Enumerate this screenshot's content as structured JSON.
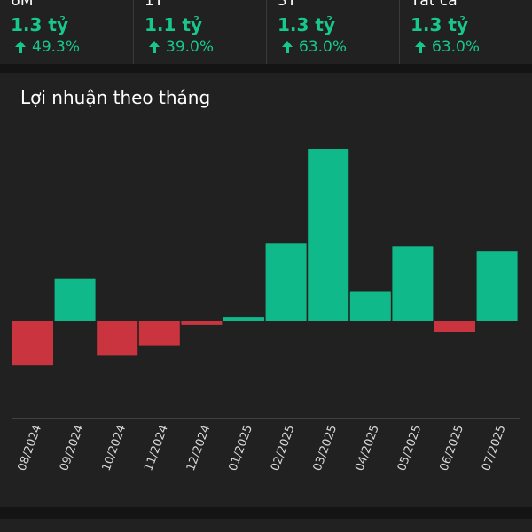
{
  "stats": [
    {
      "period": "6M",
      "value": "1.3 tỷ",
      "change": "49.3%"
    },
    {
      "period": "1Y",
      "value": "1.1 tỷ",
      "change": "39.0%"
    },
    {
      "period": "3Y",
      "value": "1.3 tỷ",
      "change": "63.0%"
    },
    {
      "period": "Tất cả",
      "value": "1.3 tỷ",
      "change": "63.0%"
    }
  ],
  "colors": {
    "positive": "#10b98a",
    "negative": "#c9343f",
    "accent_text": "#17c88c"
  },
  "icons": {
    "change": "arrow-up-icon"
  },
  "chart_data": {
    "type": "bar",
    "title": "Lợi nhuận theo tháng",
    "categories": [
      "08/2024",
      "09/2024",
      "10/2024",
      "11/2024",
      "12/2024",
      "01/2025",
      "02/2025",
      "03/2025",
      "04/2025",
      "05/2025",
      "06/2025",
      "07/2025"
    ],
    "values": [
      -51,
      48,
      -39,
      -28,
      -4,
      4,
      89,
      197,
      34,
      85,
      -13,
      80
    ],
    "ylim": [
      -110,
      210
    ],
    "grid": false,
    "legend": "none",
    "xlabel": "",
    "ylabel": ""
  }
}
